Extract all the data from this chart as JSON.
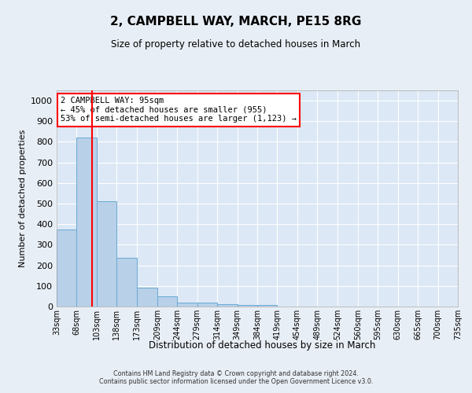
{
  "title": "2, CAMPBELL WAY, MARCH, PE15 8RG",
  "subtitle": "Size of property relative to detached houses in March",
  "xlabel": "Distribution of detached houses by size in March",
  "ylabel": "Number of detached properties",
  "bar_edges": [
    33,
    68,
    103,
    138,
    173,
    209,
    244,
    279,
    314,
    349,
    384,
    419,
    454,
    489,
    524,
    560,
    595,
    630,
    665,
    700,
    735
  ],
  "bar_values": [
    375,
    820,
    510,
    235,
    90,
    50,
    20,
    18,
    12,
    8,
    8,
    0,
    0,
    0,
    0,
    0,
    0,
    0,
    0,
    0
  ],
  "bar_color": "#b8d0e8",
  "bar_edgecolor": "#6aaad4",
  "bar_linewidth": 0.7,
  "red_line_x": 95,
  "annotation_text": "2 CAMPBELL WAY: 95sqm\n← 45% of detached houses are smaller (955)\n53% of semi-detached houses are larger (1,123) →",
  "ylim": [
    0,
    1050
  ],
  "yticks": [
    0,
    100,
    200,
    300,
    400,
    500,
    600,
    700,
    800,
    900,
    1000
  ],
  "bg_color": "#e8eef5",
  "plot_bg_color": "#dce8f5",
  "grid_color": "#ffffff",
  "footer_line1": "Contains HM Land Registry data © Crown copyright and database right 2024.",
  "footer_line2": "Contains public sector information licensed under the Open Government Licence v3.0."
}
